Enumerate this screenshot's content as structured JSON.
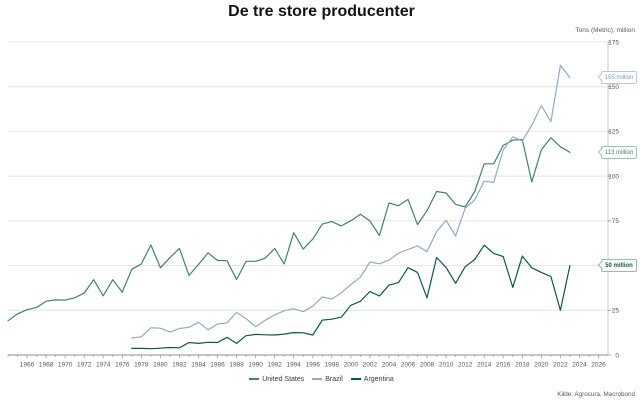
{
  "title": "De tre store producenter",
  "y_axis_title": "Tons (Metric), million",
  "source": "Kilde: Agrocura, Macrobond",
  "legend": [
    {
      "label": "United States",
      "color": "#44806d"
    },
    {
      "label": "Brazil",
      "color": "#92aac7"
    },
    {
      "label": "Argentina",
      "color": "#0d5940"
    }
  ],
  "callouts": [
    {
      "text": "155 million",
      "value": 155,
      "color": "#7f9cbf",
      "border": "#b8c8dc",
      "bold": false
    },
    {
      "text": "113 million",
      "value": 113,
      "color": "#44806d",
      "border": "#a3c0b6",
      "bold": false
    },
    {
      "text": "50 million",
      "value": 50,
      "color": "#0d5940",
      "border": "#9db5ab",
      "bold": true
    }
  ],
  "chart_data": {
    "type": "line",
    "title": "De tre store producenter",
    "ylabel": "Tons (Metric), million",
    "unit": "million metric tons",
    "ylim": [
      0,
      175
    ],
    "yticks": [
      0,
      25,
      50,
      75,
      100,
      125,
      150,
      175
    ],
    "xlim": [
      1964,
      2027
    ],
    "xticks": [
      1966,
      1968,
      1970,
      1972,
      1974,
      1976,
      1978,
      1980,
      1982,
      1984,
      1986,
      1988,
      1990,
      1992,
      1994,
      1996,
      1998,
      2000,
      2002,
      2004,
      2006,
      2008,
      2010,
      2012,
      2014,
      2016,
      2018,
      2020,
      2022,
      2024,
      2026
    ],
    "grid": "horizontal",
    "legend_position": "bottom",
    "axis_side": "right",
    "series": [
      {
        "name": "United States",
        "color": "#44806d",
        "x_start": 1964,
        "x_step": 1,
        "values": [
          19.1,
          23.0,
          25.3,
          26.6,
          30.1,
          30.8,
          30.7,
          32.0,
          34.6,
          42.1,
          33.1,
          42.1,
          35.1,
          47.9,
          50.9,
          61.5,
          48.8,
          54.4,
          59.6,
          44.5,
          50.6,
          57.1,
          52.9,
          52.7,
          42.2,
          52.4,
          52.4,
          54.1,
          59.6,
          50.9,
          68.4,
          59.2,
          64.8,
          73.2,
          74.6,
          72.2,
          75.1,
          78.7,
          75.0,
          66.8,
          85.0,
          83.5,
          87.0,
          72.9,
          80.7,
          91.4,
          90.6,
          84.2,
          82.8,
          91.4,
          106.9,
          106.9,
          117.2,
          120.1,
          120.5,
          96.7,
          114.7,
          121.5,
          116.4,
          113.3
        ],
        "end_label": "113 million"
      },
      {
        "name": "Brazil",
        "color": "#92aac7",
        "x_start": 1977,
        "x_step": 1,
        "values": [
          9.5,
          10.2,
          15.2,
          15.0,
          12.8,
          14.8,
          15.5,
          18.3,
          14.1,
          17.3,
          18.0,
          23.8,
          20.3,
          15.8,
          19.4,
          22.5,
          24.7,
          25.9,
          24.2,
          27.3,
          32.5,
          31.3,
          34.7,
          39.5,
          43.5,
          52.0,
          51.0,
          53.0,
          57.0,
          59.0,
          61.0,
          57.8,
          69.0,
          75.3,
          66.5,
          82.0,
          86.7,
          97.2,
          96.5,
          114.6,
          122.0,
          119.7,
          128.5,
          139.5,
          130.5,
          162.0,
          155.0
        ],
        "end_label": "155 million"
      },
      {
        "name": "Argentina",
        "color": "#0d5940",
        "x_start": 1977,
        "x_step": 1,
        "values": [
          3.7,
          3.7,
          3.5,
          3.8,
          4.2,
          4.0,
          7.0,
          6.5,
          7.1,
          7.0,
          9.9,
          6.5,
          10.8,
          11.5,
          11.3,
          11.2,
          11.7,
          12.5,
          12.4,
          11.2,
          19.5,
          20.0,
          21.2,
          27.8,
          30.0,
          35.5,
          33.0,
          39.0,
          40.5,
          48.8,
          46.2,
          32.0,
          54.5,
          49.0,
          40.1,
          49.3,
          53.4,
          61.4,
          56.8,
          55.0,
          37.8,
          55.3,
          48.8,
          46.2,
          43.9,
          25.0,
          50.0
        ],
        "end_label": "50 million"
      }
    ]
  }
}
